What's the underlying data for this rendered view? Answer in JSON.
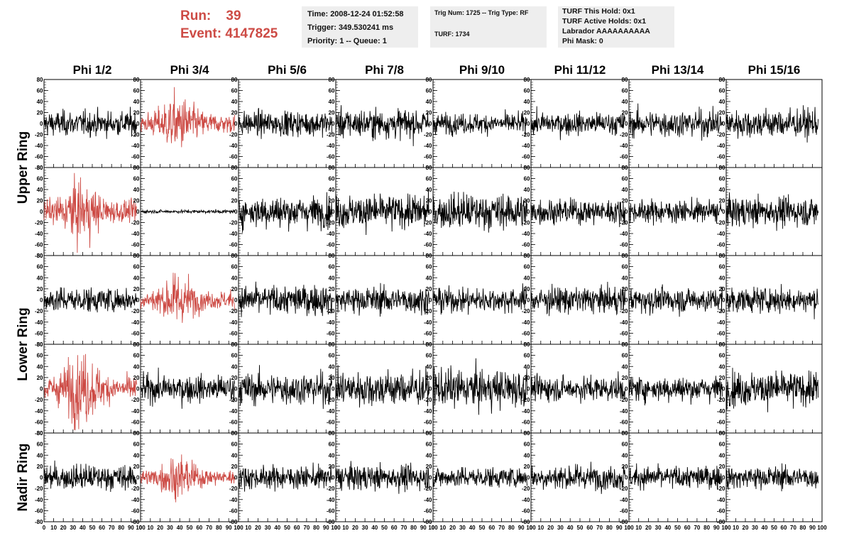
{
  "header": {
    "run_label": "Run:",
    "run_value": "39",
    "event_label": "Event:",
    "event_value": "4147825",
    "time": "Time: 2008-12-24 01:52:58",
    "trigger": "Trigger: 349.530241 ms",
    "priority": "Priority: 1 -- Queue: 1",
    "trig_num": "Trig Num: 1725 -- Trig Type: RF",
    "turf": "TURF: 1734",
    "turf_this_hold": "TURF This Hold: 0x1",
    "turf_active_holds": "TURF Active Holds: 0x1",
    "labrador": "Labrador AAAAAAAAAA",
    "phi_mask": "Phi Mask: 0"
  },
  "colors": {
    "normal_trace": "#000000",
    "triggered_trace": "#cd4b45"
  },
  "chart_data": {
    "type": "line",
    "columns": [
      "Phi 1/2",
      "Phi 3/4",
      "Phi 5/6",
      "Phi 7/8",
      "Phi 9/10",
      "Phi 11/12",
      "Phi 13/14",
      "Phi 15/16"
    ],
    "ring_labels": [
      {
        "text": "Upper Ring",
        "rows": [
          0,
          1
        ]
      },
      {
        "text": "Lower Ring",
        "rows": [
          2,
          3
        ]
      },
      {
        "text": "Nadir Ring",
        "rows": [
          4
        ]
      }
    ],
    "xlim": [
      0,
      100
    ],
    "ylim": [
      -80,
      80
    ],
    "x_ticks": [
      0,
      10,
      20,
      30,
      40,
      50,
      60,
      70,
      80,
      90,
      100
    ],
    "y_ticks": [
      -80,
      -60,
      -40,
      -20,
      0,
      20,
      40,
      60,
      80
    ],
    "trace_x_range": [
      0,
      96
    ],
    "samples_per_trace": 260,
    "panels": [
      [
        {
          "amp": 11,
          "color": "normal"
        },
        {
          "amp": 16,
          "color": "triggered",
          "burst": true
        },
        {
          "amp": 11,
          "color": "normal"
        },
        {
          "amp": 13,
          "color": "normal"
        },
        {
          "amp": 9,
          "color": "normal"
        },
        {
          "amp": 10,
          "color": "normal"
        },
        {
          "amp": 12,
          "color": "normal"
        },
        {
          "amp": 13,
          "color": "normal"
        }
      ],
      [
        {
          "amp": 18,
          "color": "triggered",
          "burst": true
        },
        {
          "amp": 1.5,
          "color": "normal"
        },
        {
          "amp": 14,
          "color": "normal"
        },
        {
          "amp": 15,
          "color": "normal"
        },
        {
          "amp": 16,
          "color": "normal"
        },
        {
          "amp": 11,
          "color": "normal"
        },
        {
          "amp": 10,
          "color": "normal"
        },
        {
          "amp": 13,
          "color": "normal"
        }
      ],
      [
        {
          "amp": 11,
          "color": "normal"
        },
        {
          "amp": 14,
          "color": "triggered",
          "burst": true
        },
        {
          "amp": 13,
          "color": "normal"
        },
        {
          "amp": 12,
          "color": "normal"
        },
        {
          "amp": 11,
          "color": "normal"
        },
        {
          "amp": 12,
          "color": "normal"
        },
        {
          "amp": 11,
          "color": "normal"
        },
        {
          "amp": 11,
          "color": "normal"
        }
      ],
      [
        {
          "amp": 20,
          "color": "triggered",
          "burst": true
        },
        {
          "amp": 12,
          "color": "normal"
        },
        {
          "amp": 14,
          "color": "normal"
        },
        {
          "amp": 16,
          "color": "normal"
        },
        {
          "amp": 17,
          "color": "normal"
        },
        {
          "amp": 11,
          "color": "normal"
        },
        {
          "amp": 11,
          "color": "normal"
        },
        {
          "amp": 15,
          "color": "normal"
        }
      ],
      [
        {
          "amp": 11,
          "color": "normal"
        },
        {
          "amp": 12,
          "color": "triggered",
          "burst": true
        },
        {
          "amp": 10,
          "color": "normal"
        },
        {
          "amp": 11,
          "color": "normal"
        },
        {
          "amp": 9,
          "color": "normal"
        },
        {
          "amp": 11,
          "color": "normal"
        },
        {
          "amp": 10,
          "color": "normal"
        },
        {
          "amp": 10,
          "color": "normal"
        }
      ]
    ]
  }
}
